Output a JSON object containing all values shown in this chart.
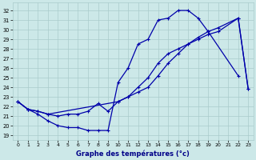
{
  "bg_color": "#cce8e8",
  "grid_color": "#aacccc",
  "line_color": "#0000aa",
  "xlabel": "Graphe des températures (°c)",
  "ylim": [
    18.5,
    32.8
  ],
  "xlim": [
    -0.5,
    23.5
  ],
  "yticks": [
    19,
    20,
    21,
    22,
    23,
    24,
    25,
    26,
    27,
    28,
    29,
    30,
    31,
    32
  ],
  "xticks": [
    0,
    1,
    2,
    3,
    4,
    5,
    6,
    7,
    8,
    9,
    10,
    11,
    12,
    13,
    14,
    15,
    16,
    17,
    18,
    19,
    20,
    21,
    22,
    23
  ],
  "line1_x": [
    0,
    1,
    2,
    3,
    4,
    5,
    6,
    7,
    8,
    9,
    10,
    11,
    12,
    13,
    14,
    15,
    16,
    17,
    18,
    19,
    22
  ],
  "line1_y": [
    22.5,
    21.7,
    21.2,
    20.5,
    20.0,
    19.8,
    19.8,
    19.5,
    19.5,
    19.5,
    24.5,
    26.0,
    28.5,
    29.0,
    31.0,
    31.2,
    32.0,
    32.0,
    31.2,
    29.8,
    25.2
  ],
  "line2_x": [
    0,
    1,
    2,
    3,
    4,
    5,
    6,
    7,
    8,
    9,
    10,
    11,
    12,
    13,
    14,
    15,
    16,
    17,
    18,
    19,
    20,
    22,
    23
  ],
  "line2_y": [
    22.5,
    21.7,
    21.5,
    21.2,
    21.0,
    21.2,
    21.2,
    21.5,
    22.3,
    21.5,
    22.5,
    23.0,
    24.0,
    25.0,
    26.5,
    27.5,
    28.0,
    28.5,
    29.0,
    29.5,
    29.8,
    31.2,
    23.8
  ],
  "line3_x": [
    0,
    1,
    2,
    3,
    10,
    11,
    12,
    13,
    14,
    15,
    16,
    17,
    18,
    19,
    20,
    22,
    23
  ],
  "line3_y": [
    22.5,
    21.7,
    21.5,
    21.2,
    22.5,
    23.0,
    23.5,
    24.0,
    25.2,
    26.5,
    27.5,
    28.5,
    29.2,
    29.8,
    30.2,
    31.2,
    23.8
  ]
}
